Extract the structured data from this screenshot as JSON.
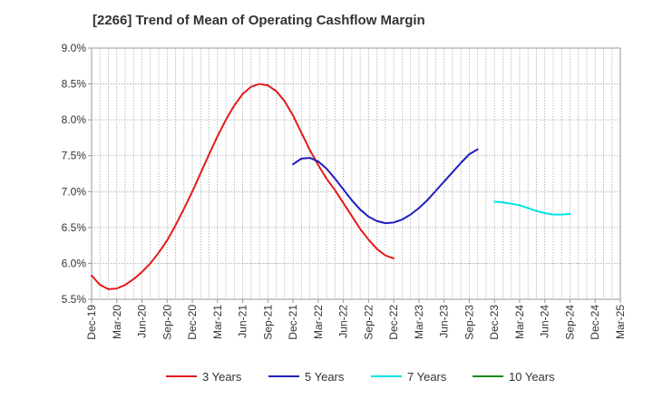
{
  "chart_data": {
    "type": "line",
    "title": "[2266]  Trend of Mean of Operating Cashflow Margin",
    "xlabel": "",
    "ylabel": "",
    "x_ticks": [
      "Dec-19",
      "Mar-20",
      "Jun-20",
      "Sep-20",
      "Dec-20",
      "Mar-21",
      "Jun-21",
      "Sep-21",
      "Dec-21",
      "Mar-22",
      "Jun-22",
      "Sep-22",
      "Dec-22",
      "Mar-23",
      "Jun-23",
      "Sep-23",
      "Dec-23",
      "Mar-24",
      "Jun-24",
      "Sep-24",
      "Dec-24",
      "Mar-25"
    ],
    "y_ticks": [
      "5.5%",
      "6.0%",
      "6.5%",
      "7.0%",
      "7.5%",
      "8.0%",
      "8.5%",
      "9.0%"
    ],
    "ylim": [
      5.5,
      9.0
    ],
    "grid": true,
    "legend_position": "bottom",
    "series": [
      {
        "name": "3 Years",
        "color": "#e41a1c",
        "start_index": 0,
        "values": [
          5.83,
          5.7,
          5.64,
          5.65,
          5.7,
          5.78,
          5.88,
          6.0,
          6.15,
          6.32,
          6.53,
          6.76,
          7.0,
          7.26,
          7.52,
          7.77,
          8.0,
          8.2,
          8.36,
          8.46,
          8.5,
          8.48,
          8.4,
          8.26,
          8.06,
          7.82,
          7.58,
          7.37,
          7.18,
          7.02,
          6.84,
          6.66,
          6.48,
          6.33,
          6.2,
          6.11,
          6.07
        ]
      },
      {
        "name": "5 Years",
        "color": "#1f1fbf",
        "start_index": 24,
        "values": [
          7.38,
          7.46,
          7.47,
          7.42,
          7.32,
          7.18,
          7.03,
          6.88,
          6.75,
          6.65,
          6.59,
          6.56,
          6.57,
          6.61,
          6.68,
          6.77,
          6.88,
          7.01,
          7.14,
          7.27,
          7.4,
          7.52,
          7.59
        ]
      },
      {
        "name": "7 Years",
        "color": "#00e5e5",
        "start_index": 48,
        "values": [
          6.86,
          6.85,
          6.83,
          6.81,
          6.77,
          6.73,
          6.7,
          6.68,
          6.68,
          6.69
        ]
      },
      {
        "name": "10 Years",
        "color": "#1a8a1a",
        "start_index": 0,
        "values": []
      }
    ]
  }
}
